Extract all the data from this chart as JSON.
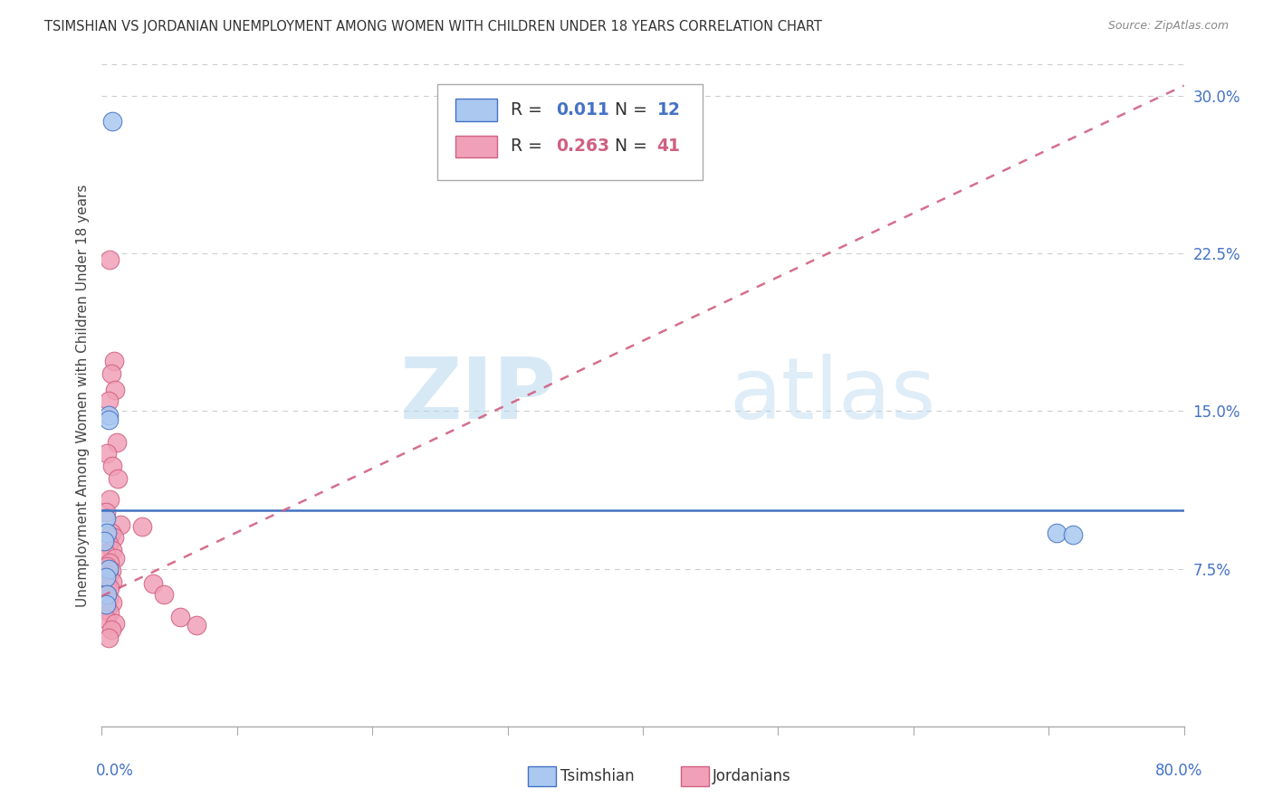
{
  "title": "TSIMSHIAN VS JORDANIAN UNEMPLOYMENT AMONG WOMEN WITH CHILDREN UNDER 18 YEARS CORRELATION CHART",
  "source": "Source: ZipAtlas.com",
  "ylabel": "Unemployment Among Women with Children Under 18 years",
  "ylabel_right_ticks": [
    "7.5%",
    "15.0%",
    "22.5%",
    "30.0%"
  ],
  "ylabel_right_vals": [
    0.075,
    0.15,
    0.225,
    0.3
  ],
  "xlim": [
    0.0,
    0.8
  ],
  "ylim": [
    0.0,
    0.315
  ],
  "legend_r1_val": "0.011",
  "legend_n1_val": "12",
  "legend_r2_val": "0.263",
  "legend_n2_val": "41",
  "tsimshian_color": "#aac8f0",
  "jordanian_color": "#f0a0b8",
  "tsimshian_edge": "#4472c4",
  "jordanian_edge": "#d06080",
  "trend_tsimshian_color": "#4472c4",
  "trend_jordanian_color": "#d06080",
  "watermark_zip": "ZIP",
  "watermark_atlas": "atlas",
  "background_color": "#ffffff",
  "grid_color": "#cccccc",
  "tsimshian_points": [
    [
      0.008,
      0.288
    ],
    [
      0.005,
      0.148
    ],
    [
      0.005,
      0.146
    ],
    [
      0.003,
      0.099
    ],
    [
      0.004,
      0.092
    ],
    [
      0.002,
      0.088
    ],
    [
      0.005,
      0.075
    ],
    [
      0.003,
      0.071
    ],
    [
      0.004,
      0.063
    ],
    [
      0.003,
      0.058
    ],
    [
      0.706,
      0.092
    ],
    [
      0.718,
      0.091
    ]
  ],
  "jordanian_points": [
    [
      0.006,
      0.222
    ],
    [
      0.009,
      0.174
    ],
    [
      0.007,
      0.168
    ],
    [
      0.01,
      0.16
    ],
    [
      0.005,
      0.155
    ],
    [
      0.011,
      0.135
    ],
    [
      0.004,
      0.13
    ],
    [
      0.008,
      0.124
    ],
    [
      0.012,
      0.118
    ],
    [
      0.006,
      0.108
    ],
    [
      0.003,
      0.102
    ],
    [
      0.014,
      0.096
    ],
    [
      0.007,
      0.092
    ],
    [
      0.009,
      0.09
    ],
    [
      0.005,
      0.087
    ],
    [
      0.008,
      0.084
    ],
    [
      0.003,
      0.082
    ],
    [
      0.01,
      0.08
    ],
    [
      0.006,
      0.078
    ],
    [
      0.004,
      0.076
    ],
    [
      0.007,
      0.074
    ],
    [
      0.003,
      0.072
    ],
    [
      0.005,
      0.072
    ],
    [
      0.002,
      0.07
    ],
    [
      0.008,
      0.069
    ],
    [
      0.004,
      0.067
    ],
    [
      0.006,
      0.066
    ],
    [
      0.003,
      0.063
    ],
    [
      0.005,
      0.061
    ],
    [
      0.008,
      0.059
    ],
    [
      0.004,
      0.056
    ],
    [
      0.006,
      0.054
    ],
    [
      0.003,
      0.051
    ],
    [
      0.01,
      0.049
    ],
    [
      0.007,
      0.046
    ],
    [
      0.005,
      0.042
    ],
    [
      0.03,
      0.095
    ],
    [
      0.038,
      0.068
    ],
    [
      0.046,
      0.063
    ],
    [
      0.058,
      0.052
    ],
    [
      0.07,
      0.048
    ]
  ],
  "jord_trend_x0": 0.0,
  "jord_trend_y0": 0.062,
  "jord_trend_x1": 0.8,
  "jord_trend_y1": 0.305,
  "tsim_trend_y": 0.103
}
